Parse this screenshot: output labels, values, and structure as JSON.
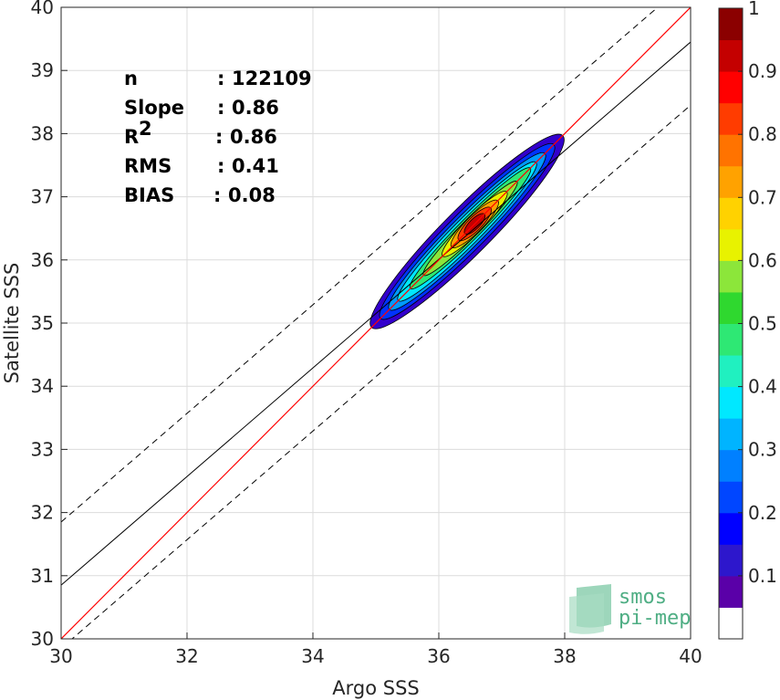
{
  "chart_data": {
    "type": "scatter",
    "xlabel": "Argo SSS",
    "ylabel": "Satellite SSS",
    "xlim": [
      30,
      40
    ],
    "ylim": [
      30,
      40
    ],
    "xticks": [
      "30",
      "32",
      "34",
      "36",
      "38",
      "40"
    ],
    "yticks": [
      "30",
      "31",
      "32",
      "33",
      "34",
      "35",
      "36",
      "37",
      "38",
      "39",
      "40"
    ],
    "grid": true,
    "stats": [
      {
        "label": "n",
        "sep": ":",
        "value": "122109"
      },
      {
        "label": "Slope",
        "sep": ":",
        "value": "0.86"
      },
      {
        "label": "R",
        "sup": "2",
        "sep": ":",
        "value": "0.86"
      },
      {
        "label": "RMS",
        "sep": ":",
        "value": "0.41"
      },
      {
        "label": "BIAS",
        "sep": ":",
        "value": "0.08"
      }
    ],
    "identity_line": {
      "x": [
        30,
        40
      ],
      "y": [
        30,
        40
      ],
      "color": "#ff0000"
    },
    "fit_line": {
      "x": [
        30,
        40
      ],
      "y": [
        30.85,
        39.45
      ],
      "color": "#000000"
    },
    "envelope_lines": [
      {
        "x": [
          30,
          40
        ],
        "y": [
          31.85,
          40.45
        ],
        "style": "dashed"
      },
      {
        "x": [
          30,
          40
        ],
        "y": [
          29.85,
          38.45
        ],
        "style": "dashed"
      }
    ],
    "density_contours": {
      "center": [
        36.45,
        36.45
      ],
      "levels": [
        0.05,
        0.1,
        0.2,
        0.3,
        0.4,
        0.5,
        0.6,
        0.7,
        0.8,
        0.9
      ]
    },
    "colorbar": {
      "range": [
        0,
        1
      ],
      "ticks": [
        "0.1",
        "0.2",
        "0.3",
        "0.4",
        "0.5",
        "0.6",
        "0.7",
        "0.8",
        "0.9",
        "1"
      ],
      "colors": [
        "#ffffff",
        "#5a00a8",
        "#2d17cc",
        "#0000ff",
        "#0046ff",
        "#0080ff",
        "#00b4ff",
        "#00e8ff",
        "#20f0c0",
        "#2ee874",
        "#2fd82f",
        "#8ce63a",
        "#e8f200",
        "#ffd200",
        "#ffa200",
        "#ff7300",
        "#ff3c00",
        "#ff0000",
        "#c40000",
        "#8b0000"
      ]
    }
  },
  "logo": {
    "line1": "smos",
    "line2": "pi-mep"
  }
}
